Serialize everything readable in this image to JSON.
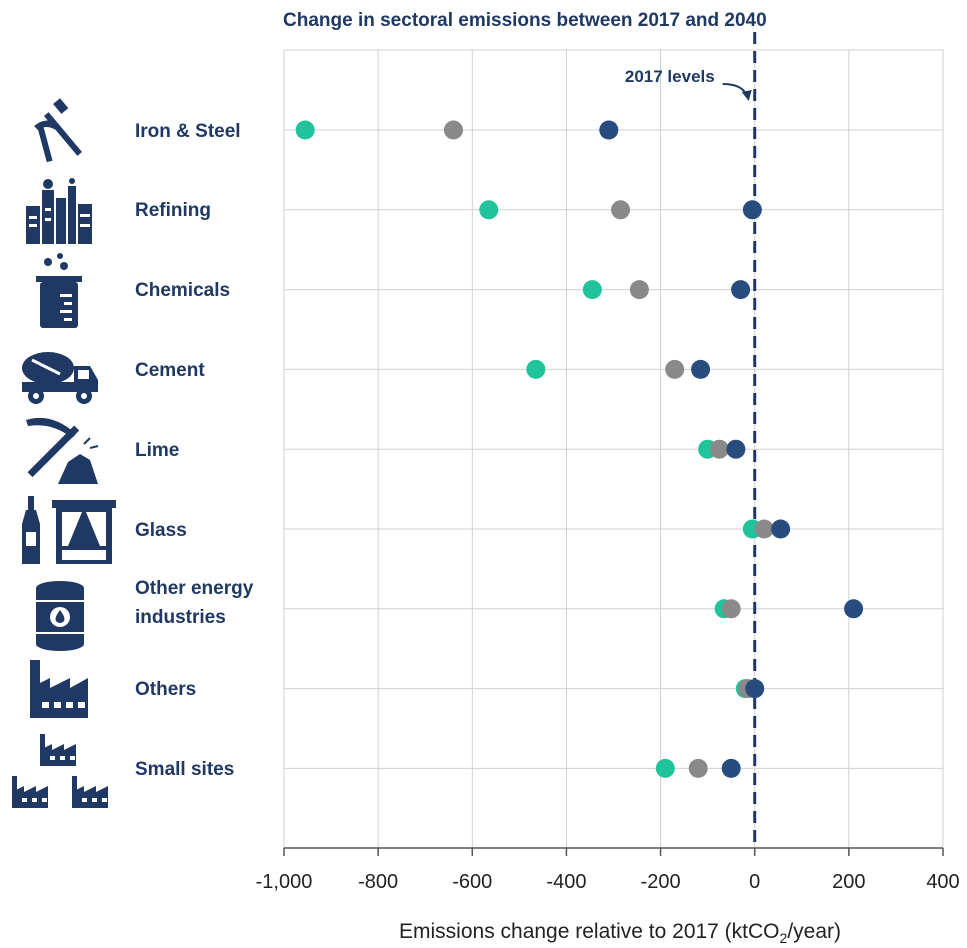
{
  "chart_data": {
    "type": "scatter",
    "title": "Change in sectoral emissions between 2017 and 2040",
    "xlabel_prefix": "Emissions change relative to 2017 (ktCO",
    "xlabel_sub": "2",
    "xlabel_suffix": "/year)",
    "xlim": [
      -1000,
      400
    ],
    "xticks": [
      -1000,
      -800,
      -600,
      -400,
      -200,
      0,
      200,
      400
    ],
    "xtick_labels": [
      "-1,000",
      "-800",
      "-600",
      "-400",
      "-200",
      "0",
      "200",
      "400"
    ],
    "grid": true,
    "reference_line": {
      "x": 0,
      "label": "2017 levels"
    },
    "categories": [
      "Iron & Steel",
      "Refining",
      "Chemicals",
      "Cement",
      "Lime",
      "Glass",
      "Other energy\nindustries",
      "Others",
      "Small sites"
    ],
    "series": [
      {
        "color": "#21c49a",
        "values": [
          -955,
          -565,
          -345,
          -465,
          -100,
          -5,
          -65,
          -20,
          -190
        ]
      },
      {
        "color": "#898989",
        "values": [
          -640,
          -285,
          -245,
          -170,
          -75,
          20,
          -50,
          -15,
          -120
        ]
      },
      {
        "color": "#284c7e",
        "values": [
          -310,
          -5,
          -30,
          -115,
          -40,
          55,
          210,
          0,
          -50
        ]
      }
    ]
  },
  "icons": [
    "pickaxe-hammer-icon",
    "refinery-icon",
    "beaker-icon",
    "cement-truck-icon",
    "pickaxe-rock-icon",
    "bottle-window-icon",
    "oil-barrel-icon",
    "factory-icon",
    "small-factories-icon"
  ],
  "colors": {
    "label": "#1f3864",
    "grid": "#d0d0d0",
    "axis": "#555555",
    "reference_line": "#1f3864"
  }
}
